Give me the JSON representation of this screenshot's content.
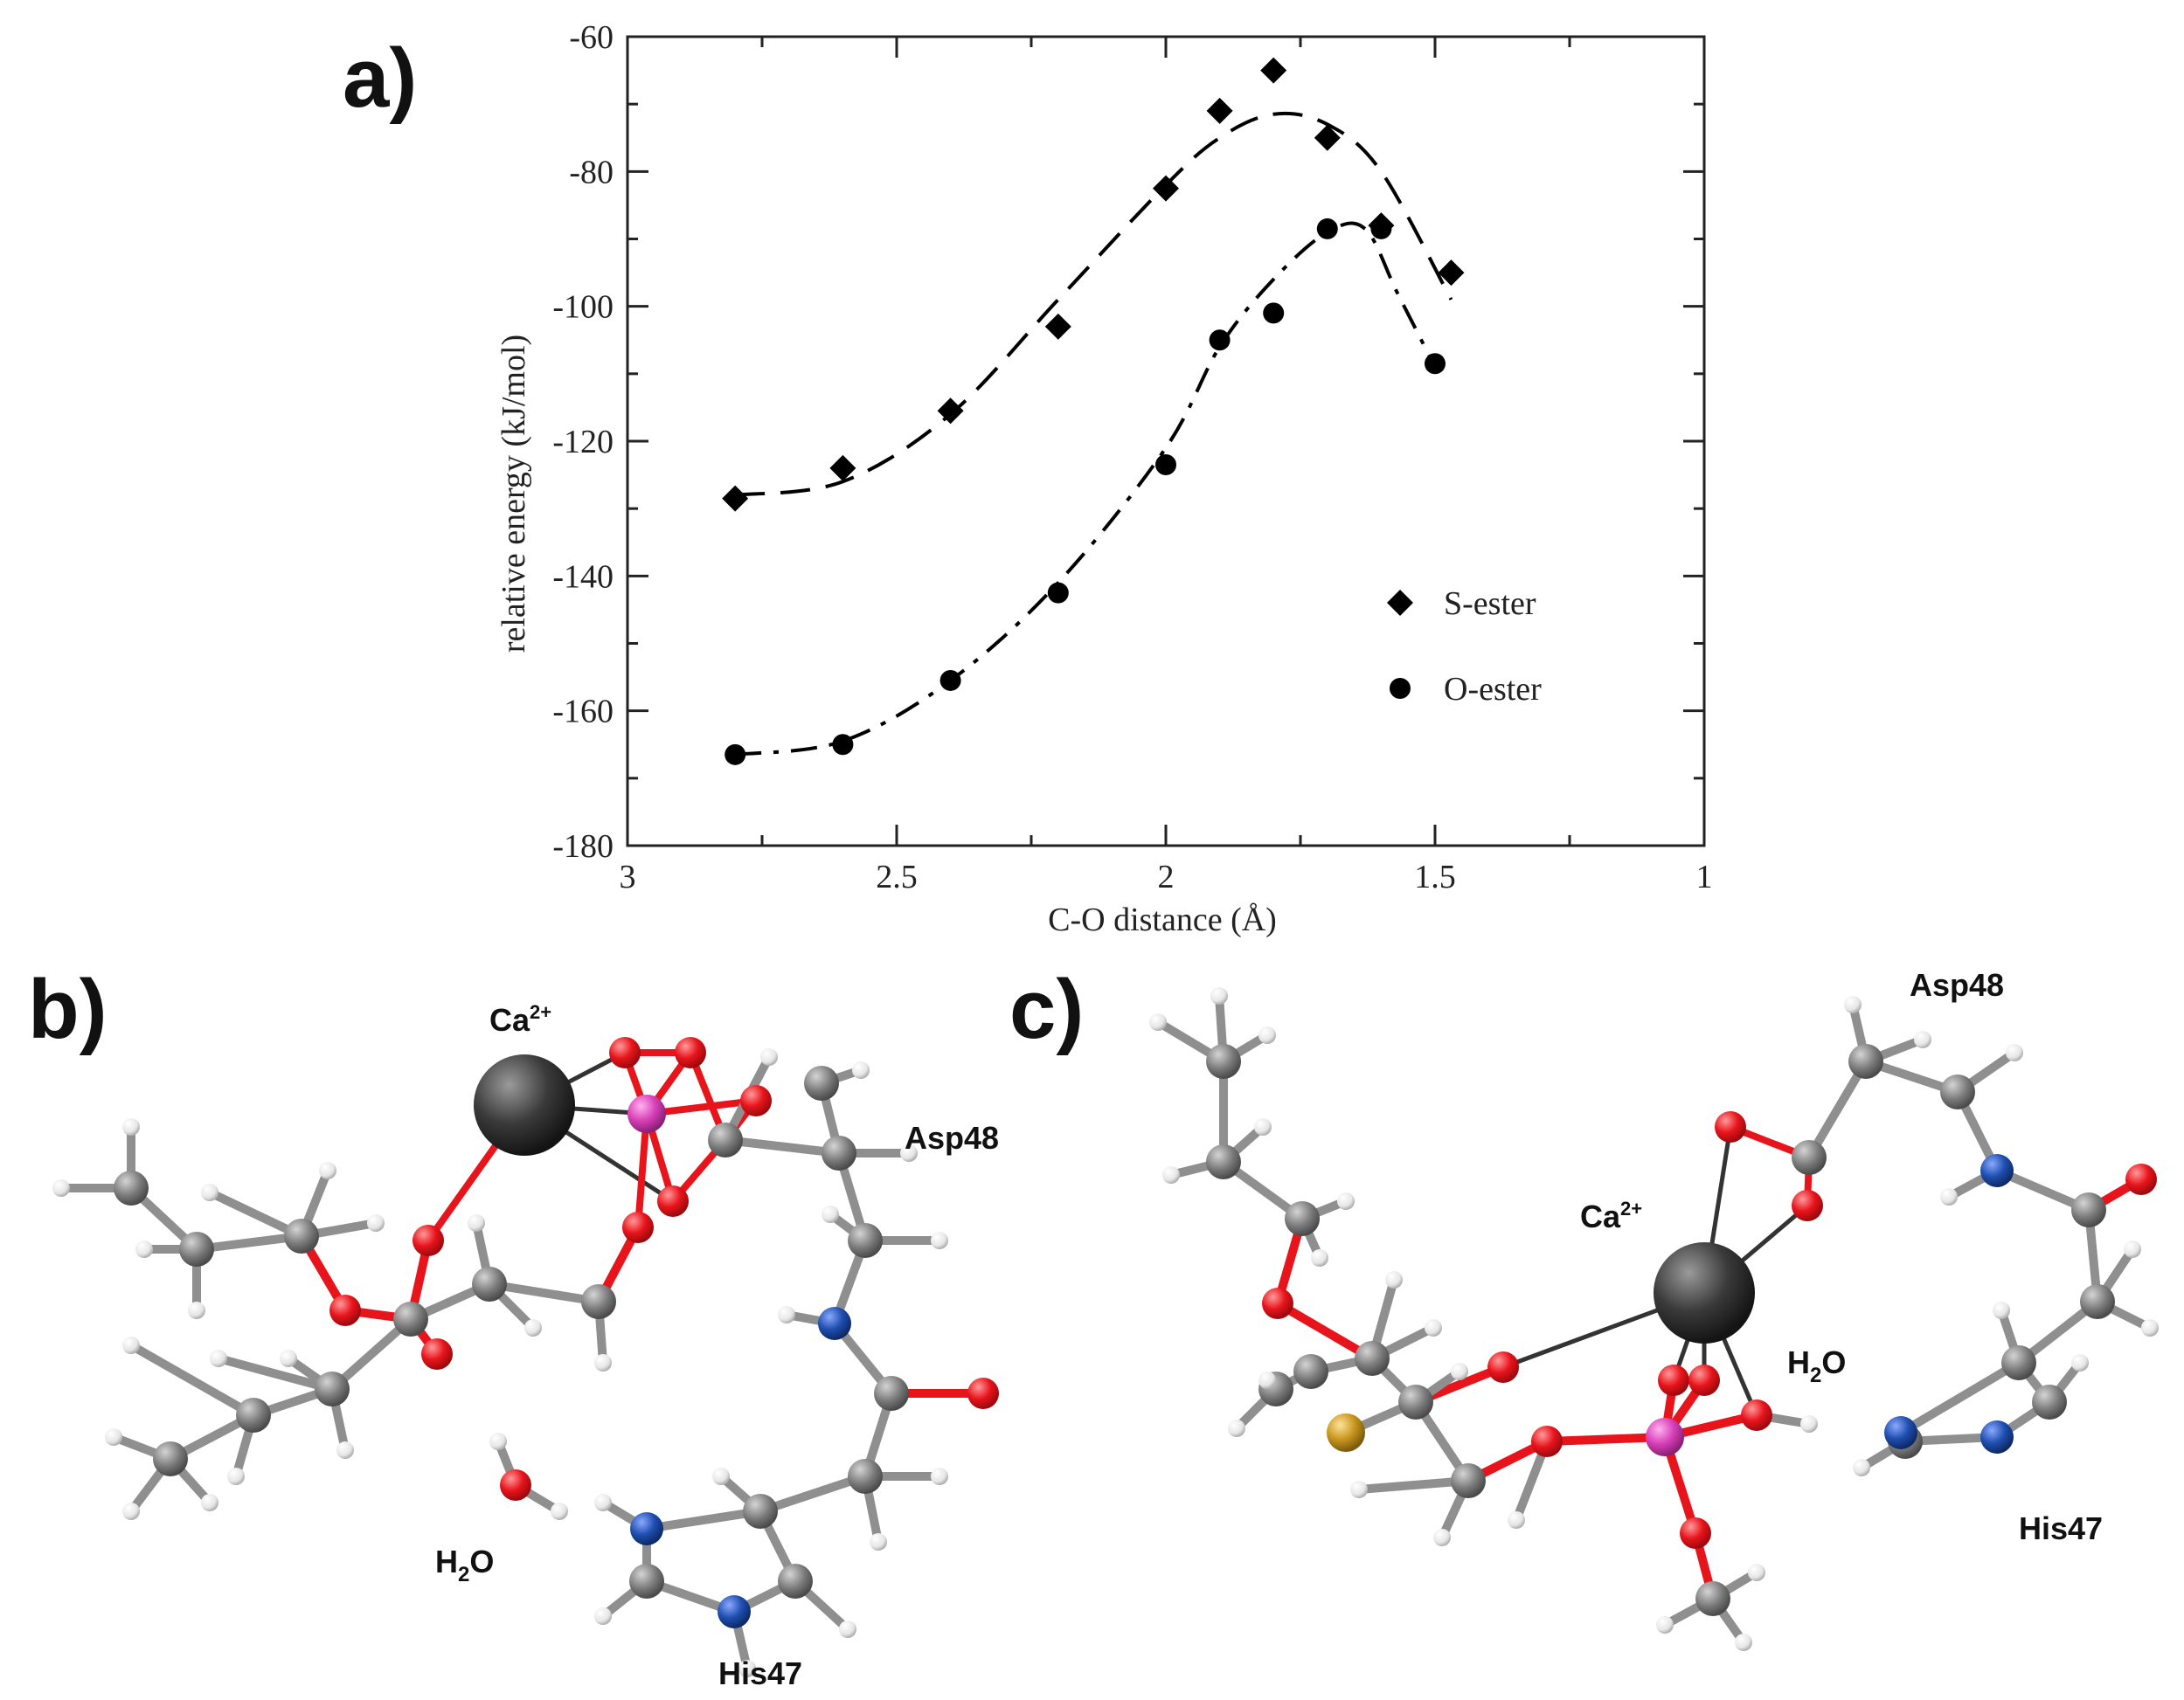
{
  "panels": {
    "a": "a)",
    "b": "b)",
    "c": "c)"
  },
  "chart_data": {
    "type": "scatter",
    "xlabel": "C-O distance (Å)",
    "ylabel": "relative energy (kJ/mol)",
    "xlim": [
      3,
      1
    ],
    "ylim": [
      -180,
      -60
    ],
    "x_ticks": [
      3,
      2.5,
      2,
      1.5,
      1
    ],
    "x_tick_labels": [
      "3",
      "2.5",
      "2",
      "1.5",
      "1"
    ],
    "y_ticks": [
      -180,
      -160,
      -140,
      -120,
      -100,
      -80,
      -60
    ],
    "y_tick_labels": [
      "-180",
      "-160",
      "-140",
      "-120",
      "-100",
      "-80",
      "-60"
    ],
    "legend_position": "bottom-right",
    "series": [
      {
        "name": "S-ester",
        "marker": "diamond",
        "line": "dashed",
        "color": "#000000",
        "points": [
          [
            2.8,
            -128.5
          ],
          [
            2.6,
            -124
          ],
          [
            2.4,
            -115.5
          ],
          [
            2.2,
            -103
          ],
          [
            2.0,
            -82.5
          ],
          [
            1.9,
            -71
          ],
          [
            1.8,
            -65
          ],
          [
            1.7,
            -75
          ],
          [
            1.6,
            -88
          ],
          [
            1.47,
            -95
          ]
        ],
        "fit": [
          [
            2.8,
            -128
          ],
          [
            2.6,
            -126
          ],
          [
            2.4,
            -116
          ],
          [
            2.2,
            -99
          ],
          [
            2.0,
            -82
          ],
          [
            1.9,
            -75
          ],
          [
            1.8,
            -71.5
          ],
          [
            1.7,
            -73
          ],
          [
            1.6,
            -80
          ],
          [
            1.47,
            -99
          ]
        ]
      },
      {
        "name": "O-ester",
        "marker": "circle",
        "line": "dash-dot",
        "color": "#000000",
        "points": [
          [
            2.8,
            -166.5
          ],
          [
            2.6,
            -165
          ],
          [
            2.4,
            -155.5
          ],
          [
            2.2,
            -142.5
          ],
          [
            2.0,
            -123.5
          ],
          [
            1.9,
            -105
          ],
          [
            1.8,
            -101
          ],
          [
            1.7,
            -88.5
          ],
          [
            1.6,
            -88.5
          ],
          [
            1.5,
            -108.5
          ]
        ],
        "fit": [
          [
            2.8,
            -166.5
          ],
          [
            2.6,
            -164.5
          ],
          [
            2.4,
            -155.5
          ],
          [
            2.2,
            -141
          ],
          [
            2.0,
            -121
          ],
          [
            1.9,
            -106
          ],
          [
            1.8,
            -96
          ],
          [
            1.7,
            -89
          ],
          [
            1.63,
            -88.5
          ],
          [
            1.57,
            -98
          ],
          [
            1.5,
            -109
          ]
        ]
      }
    ]
  },
  "molecules": {
    "b": {
      "labels": {
        "ion": "Ca",
        "ion_charge": "2+",
        "asp": "Asp48",
        "water": "H",
        "water_sub": "2",
        "water_o": "O",
        "his": "His47"
      }
    },
    "c": {
      "labels": {
        "ion": "Ca",
        "ion_charge": "2+",
        "asp": "Asp48",
        "water": "H",
        "water_sub": "2",
        "water_o": "O",
        "his": "His47"
      }
    },
    "atom_colors": {
      "C": "#7a7a7a",
      "H": "#eeeeee",
      "O": "#e8141c",
      "N": "#1f4fb0",
      "P": "#d73fb8",
      "S": "#c8961e",
      "Ca": "#3a3a3a",
      "bond_grey": "#8f8f8f",
      "bond_red": "#e8141c"
    }
  }
}
